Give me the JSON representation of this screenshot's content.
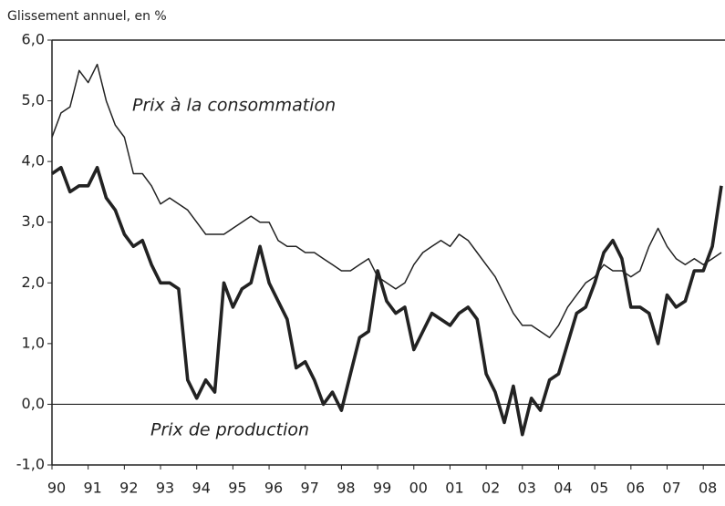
{
  "chart_data": {
    "type": "line",
    "y_axis_label": "Glissement annuel, en %",
    "annotations": [
      "Prix à la consommation",
      "Prix de production"
    ],
    "x": [
      1990,
      1990.25,
      1990.5,
      1990.75,
      1991,
      1991.25,
      1991.5,
      1991.75,
      1992,
      1992.25,
      1992.5,
      1992.75,
      1993,
      1993.25,
      1993.5,
      1993.75,
      1994,
      1994.25,
      1994.5,
      1994.75,
      1995,
      1995.25,
      1995.5,
      1995.75,
      1996,
      1996.25,
      1996.5,
      1996.75,
      1997,
      1997.25,
      1997.5,
      1997.75,
      1998,
      1998.25,
      1998.5,
      1998.75,
      1999,
      1999.25,
      1999.5,
      1999.75,
      2000,
      2000.25,
      2000.5,
      2000.75,
      2001,
      2001.25,
      2001.5,
      2001.75,
      2002,
      2002.25,
      2002.5,
      2002.75,
      2003,
      2003.25,
      2003.5,
      2003.75,
      2004,
      2004.25,
      2004.5,
      2004.75,
      2005,
      2005.25,
      2005.5,
      2005.75,
      2006,
      2006.25,
      2006.5,
      2006.75,
      2007,
      2007.25,
      2007.5,
      2007.75,
      2008,
      2008.25,
      2008.5
    ],
    "series": [
      {
        "name": "Prix à la consommation",
        "color": "#222222",
        "values": [
          4.4,
          4.8,
          4.9,
          5.5,
          5.3,
          5.6,
          5.0,
          4.6,
          4.4,
          3.8,
          3.8,
          3.6,
          3.3,
          3.4,
          3.3,
          3.2,
          3.0,
          2.8,
          2.8,
          2.8,
          2.9,
          3.0,
          3.1,
          3.0,
          3.0,
          2.7,
          2.6,
          2.6,
          2.5,
          2.5,
          2.4,
          2.3,
          2.2,
          2.2,
          2.3,
          2.4,
          2.1,
          2.0,
          1.9,
          2.0,
          2.3,
          2.5,
          2.6,
          2.7,
          2.6,
          2.8,
          2.7,
          2.5,
          2.3,
          2.1,
          1.8,
          1.5,
          1.3,
          1.3,
          1.2,
          1.1,
          1.3,
          1.6,
          1.8,
          2.0,
          2.1,
          2.3,
          2.2,
          2.2,
          2.1,
          2.2,
          2.6,
          2.9,
          2.6,
          2.4,
          2.3,
          2.4,
          2.3,
          2.4,
          2.5
        ]
      },
      {
        "name": "Prix de production",
        "color": "#222222",
        "values": [
          3.8,
          3.9,
          3.5,
          3.6,
          3.6,
          3.9,
          3.4,
          3.2,
          2.8,
          2.6,
          2.7,
          2.3,
          2.0,
          2.0,
          1.9,
          0.4,
          0.1,
          0.4,
          0.2,
          2.0,
          1.6,
          1.9,
          2.0,
          2.6,
          2.0,
          1.7,
          1.4,
          0.6,
          0.7,
          0.4,
          0.0,
          0.2,
          -0.1,
          0.5,
          1.1,
          1.2,
          2.2,
          1.7,
          1.5,
          1.6,
          0.9,
          1.2,
          1.5,
          1.4,
          1.3,
          1.5,
          1.6,
          1.4,
          0.5,
          0.2,
          -0.3,
          0.3,
          -0.5,
          0.1,
          -0.1,
          0.4,
          0.5,
          1.0,
          1.5,
          1.6,
          2.0,
          2.5,
          2.7,
          2.4,
          1.6,
          1.6,
          1.5,
          1.0,
          1.8,
          1.6,
          1.7,
          2.2,
          2.2,
          2.6,
          3.6
        ]
      }
    ],
    "xlim": [
      1990,
      2008.6
    ],
    "xticks": [
      {
        "value": 1990,
        "label": "90"
      },
      {
        "value": 1991,
        "label": "91"
      },
      {
        "value": 1992,
        "label": "92"
      },
      {
        "value": 1993,
        "label": "93"
      },
      {
        "value": 1994,
        "label": "94"
      },
      {
        "value": 1995,
        "label": "95"
      },
      {
        "value": 1996,
        "label": "96"
      },
      {
        "value": 1997,
        "label": "97"
      },
      {
        "value": 1998,
        "label": "98"
      },
      {
        "value": 1999,
        "label": "99"
      },
      {
        "value": 2000,
        "label": "00"
      },
      {
        "value": 2001,
        "label": "01"
      },
      {
        "value": 2002,
        "label": "02"
      },
      {
        "value": 2003,
        "label": "03"
      },
      {
        "value": 2004,
        "label": "04"
      },
      {
        "value": 2005,
        "label": "05"
      },
      {
        "value": 2006,
        "label": "06"
      },
      {
        "value": 2007,
        "label": "07"
      },
      {
        "value": 2008,
        "label": "08"
      }
    ],
    "ylim": [
      -1,
      6
    ],
    "yticks": [
      {
        "value": -1,
        "label": "-1,0"
      },
      {
        "value": 0,
        "label": "0,0"
      },
      {
        "value": 1,
        "label": "1,0"
      },
      {
        "value": 2,
        "label": "2,0"
      },
      {
        "value": 3,
        "label": "3,0"
      },
      {
        "value": 4,
        "label": "4,0"
      },
      {
        "value": 5,
        "label": "5,0"
      },
      {
        "value": 6,
        "label": "6,0"
      }
    ],
    "grid": false
  }
}
